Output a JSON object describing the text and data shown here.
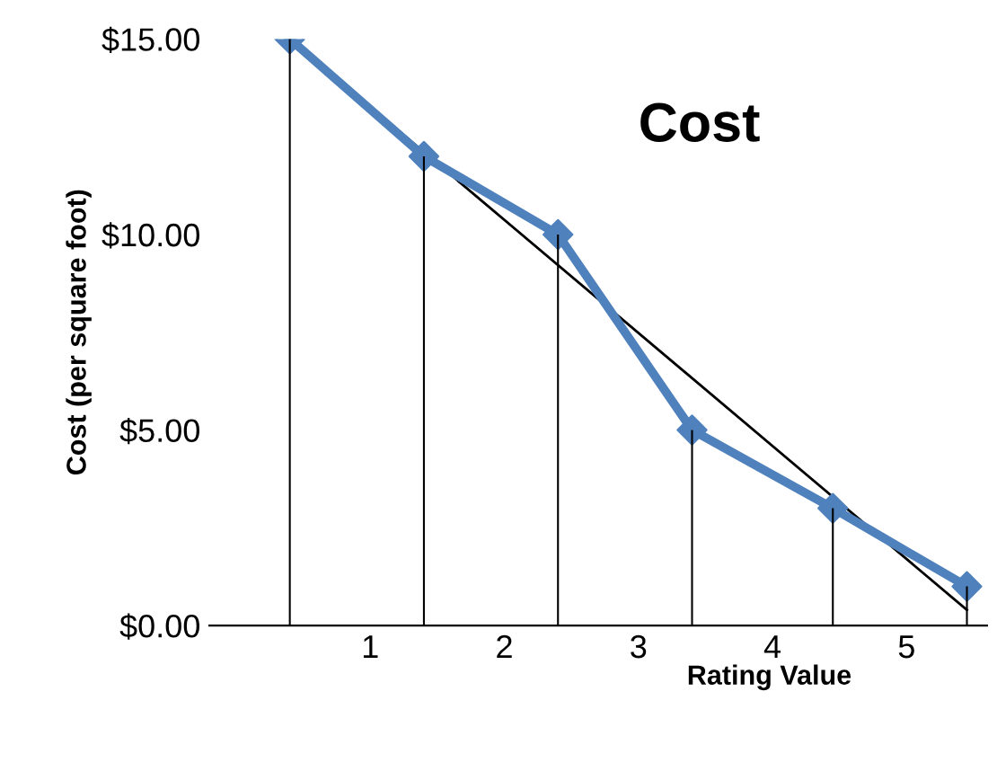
{
  "chart_data": {
    "type": "line",
    "title": "Cost",
    "xlabel": "Rating Value",
    "ylabel": "Cost (per square foot)",
    "series": [
      {
        "color": "#4f81bd",
        "x": [
          0.4,
          1.4,
          2.4,
          3.4,
          4.45,
          5.45
        ],
        "values": [
          15,
          12,
          10,
          5,
          3,
          1
        ],
        "marker": "diamond"
      },
      {
        "type": "bar",
        "color": "#000000",
        "x": [
          0.4,
          1.4,
          2.4,
          3.4,
          4.45,
          5.45
        ],
        "values": [
          15,
          12,
          10,
          5,
          3,
          1
        ]
      },
      {
        "type": "line",
        "color": "#000000",
        "x": [
          0.4,
          5.45
        ],
        "values": [
          15.0,
          0.4
        ],
        "marker": "none"
      }
    ],
    "xlim": [
      -0.2,
      5.6
    ],
    "xticks": [
      1,
      2,
      3,
      4,
      5
    ],
    "ylim": [
      0,
      15
    ],
    "yticks": [
      {
        "value": 0,
        "label": "$0.00"
      },
      {
        "value": 5,
        "label": "$5.00"
      },
      {
        "value": 10,
        "label": "$10.00"
      },
      {
        "value": 15,
        "label": "$15.00"
      }
    ],
    "grid": false,
    "legend": false
  }
}
